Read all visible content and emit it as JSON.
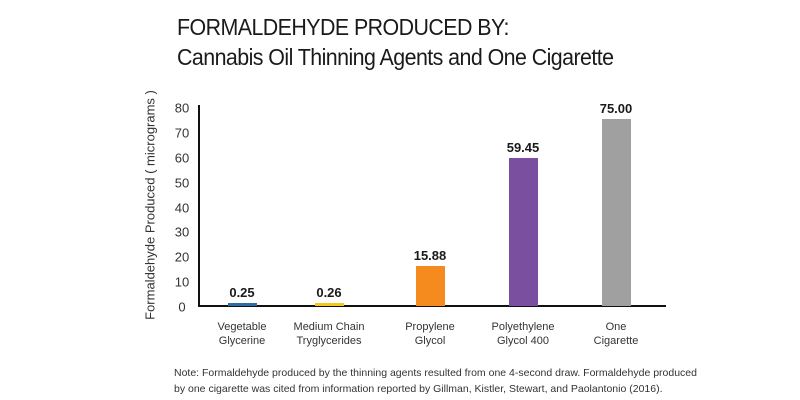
{
  "chart_data": {
    "type": "bar",
    "title": "FORMALDEHYDE PRODUCED BY:",
    "subtitle": "Cannabis Oil Thinning Agents and One Cigarette",
    "xlabel": "",
    "ylabel": "Formaldehyde Produced ( micrograms )",
    "ylim": [
      0,
      80
    ],
    "yticks": [
      "0",
      "10",
      "20",
      "30",
      "40",
      "50",
      "60",
      "70",
      "80"
    ],
    "grid": false,
    "legend": null,
    "categories": [
      [
        "Vegetable",
        "Glycerine"
      ],
      [
        "Medium Chain",
        "Tryglycerides"
      ],
      [
        "Propylene",
        "Glycol"
      ],
      [
        "Polyethylene",
        "Glycol 400"
      ],
      [
        "One",
        "Cigarette"
      ]
    ],
    "values": [
      0.25,
      0.26,
      15.88,
      59.45,
      75.0
    ],
    "value_labels": [
      "0.25",
      "0.26",
      "15.88",
      "59.45",
      "75.00"
    ],
    "colors": [
      "#2e6da4",
      "#f2c81e",
      "#f58a1f",
      "#7b4fa0",
      "#a0a0a0"
    ],
    "annotation": "Note: Formaldehyde produced by the thinning agents resulted from one 4-second draw. Formaldehyde produced by one cigarette was cited from information reported by Gillman, Kistler, Stewart, and Paolantonio (2016)."
  },
  "note": {
    "line1": "Note: Formaldehyde produced by the thinning agents resulted from one 4-second draw. Formaldehyde produced",
    "line2": "by one cigarette was cited from information reported by Gillman, Kistler, Stewart, and Paolantonio (2016)."
  }
}
